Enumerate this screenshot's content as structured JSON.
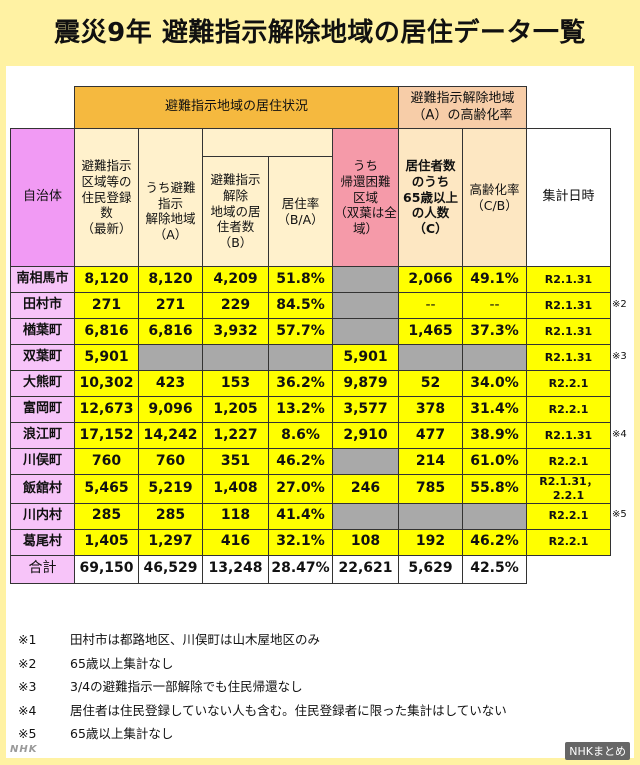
{
  "title": "震災9年 避難指示解除地域の居住データ一覧",
  "header": {
    "group1": "避難指示地域の居住状況",
    "group2_line1": "避難指示解除地域",
    "group2_line2": "（A）の高齢化率",
    "municipality": "自治体",
    "col_registered": "避難指示\n区域等の\n住民登録\n数\n（最新）",
    "col_lifted": "うち避難\n指示\n解除地域\n（A）",
    "col_residents": "避難指示\n解除\n地域の居\n住者数\n（B）",
    "col_rate": "居住率\n（B/A）",
    "col_difficult": "うち\n帰還困難\n区域\n（双葉は全\n域）",
    "col_elderly": "居住者数\nのうち\n65歳以上\nの人数\n（C）",
    "col_aging": "高齢化率\n（C/B）",
    "col_date": "集計日時"
  },
  "rows": [
    {
      "name": "南相馬市",
      "reg": "8,120",
      "lifted": "8,120",
      "res": "4,209",
      "rate": "51.8%",
      "diff": null,
      "eld": "2,066",
      "aging": "49.1%",
      "date": "R2.1.31",
      "note": ""
    },
    {
      "name": "田村市",
      "reg": "271",
      "lifted": "271",
      "res": "229",
      "rate": "84.5%",
      "diff": null,
      "eld": "--",
      "aging": "--",
      "date": "R2.1.31",
      "note": "※2"
    },
    {
      "name": "楢葉町",
      "reg": "6,816",
      "lifted": "6,816",
      "res": "3,932",
      "rate": "57.7%",
      "diff": null,
      "eld": "1,465",
      "aging": "37.3%",
      "date": "R2.1.31",
      "note": ""
    },
    {
      "name": "双葉町",
      "reg": "5,901",
      "lifted": null,
      "res": null,
      "rate": null,
      "diff": "5,901",
      "eld": null,
      "aging": null,
      "date": "R2.1.31",
      "note": "※3"
    },
    {
      "name": "大熊町",
      "reg": "10,302",
      "lifted": "423",
      "res": "153",
      "rate": "36.2%",
      "diff": "9,879",
      "eld": "52",
      "aging": "34.0%",
      "date": "R2.2.1",
      "note": ""
    },
    {
      "name": "富岡町",
      "reg": "12,673",
      "lifted": "9,096",
      "res": "1,205",
      "rate": "13.2%",
      "diff": "3,577",
      "eld": "378",
      "aging": "31.4%",
      "date": "R2.2.1",
      "note": ""
    },
    {
      "name": "浪江町",
      "reg": "17,152",
      "lifted": "14,242",
      "res": "1,227",
      "rate": "8.6%",
      "diff": "2,910",
      "eld": "477",
      "aging": "38.9%",
      "date": "R2.1.31",
      "note": "※4"
    },
    {
      "name": "川俣町",
      "reg": "760",
      "lifted": "760",
      "res": "351",
      "rate": "46.2%",
      "diff": null,
      "eld": "214",
      "aging": "61.0%",
      "date": "R2.2.1",
      "note": ""
    },
    {
      "name": "飯舘村",
      "reg": "5,465",
      "lifted": "5,219",
      "res": "1,408",
      "rate": "27.0%",
      "diff": "246",
      "eld": "785",
      "aging": "55.8%",
      "date": "R2.1.31，2.2.1",
      "note": ""
    },
    {
      "name": "川内村",
      "reg": "285",
      "lifted": "285",
      "res": "118",
      "rate": "41.4%",
      "diff": null,
      "eld": null,
      "aging": null,
      "date": "R2.2.1",
      "note": "※5"
    },
    {
      "name": "葛尾村",
      "reg": "1,405",
      "lifted": "1,297",
      "res": "416",
      "rate": "32.1%",
      "diff": "108",
      "eld": "192",
      "aging": "46.2%",
      "date": "R2.2.1",
      "note": ""
    }
  ],
  "total": {
    "name": "合計",
    "reg": "69,150",
    "lifted": "46,529",
    "res": "13,248",
    "rate": "28.47%",
    "diff": "22,621",
    "eld": "5,629",
    "aging": "42.5%"
  },
  "notes": [
    {
      "k": "※1",
      "t": "田村市は都路地区、川俣町は山木屋地区のみ"
    },
    {
      "k": "※2",
      "t": "65歳以上集計なし"
    },
    {
      "k": "※3",
      "t": "3/4の避難指示一部解除でも住民帰還なし"
    },
    {
      "k": "※4",
      "t": "居住者は住民登録していない人も含む。住民登録者に限った集計はしていない"
    },
    {
      "k": "※5",
      "t": "65歳以上集計なし"
    }
  ],
  "footer": {
    "left_logo": "NHK",
    "right_logo": "NHKまとめ"
  },
  "colors": {
    "background": "#fff2a3",
    "highlight": "#ffff00",
    "gray": "#a9a9a9",
    "orange": "#f5b93f",
    "magenta": "#f19af4"
  }
}
